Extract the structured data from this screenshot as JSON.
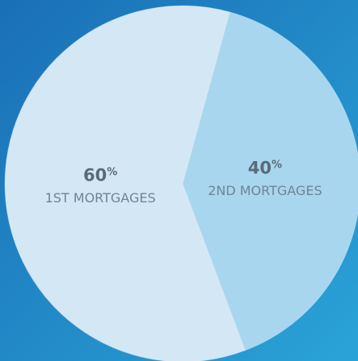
{
  "chart_data": {
    "type": "pie",
    "categories": [
      "1ST MORTGAGES",
      "2ND MORTGAGES"
    ],
    "values": [
      60,
      40
    ],
    "value_labels": [
      "60%",
      "40%"
    ],
    "colors": [
      "#d4e7f4",
      "#a8d6ee"
    ]
  }
}
